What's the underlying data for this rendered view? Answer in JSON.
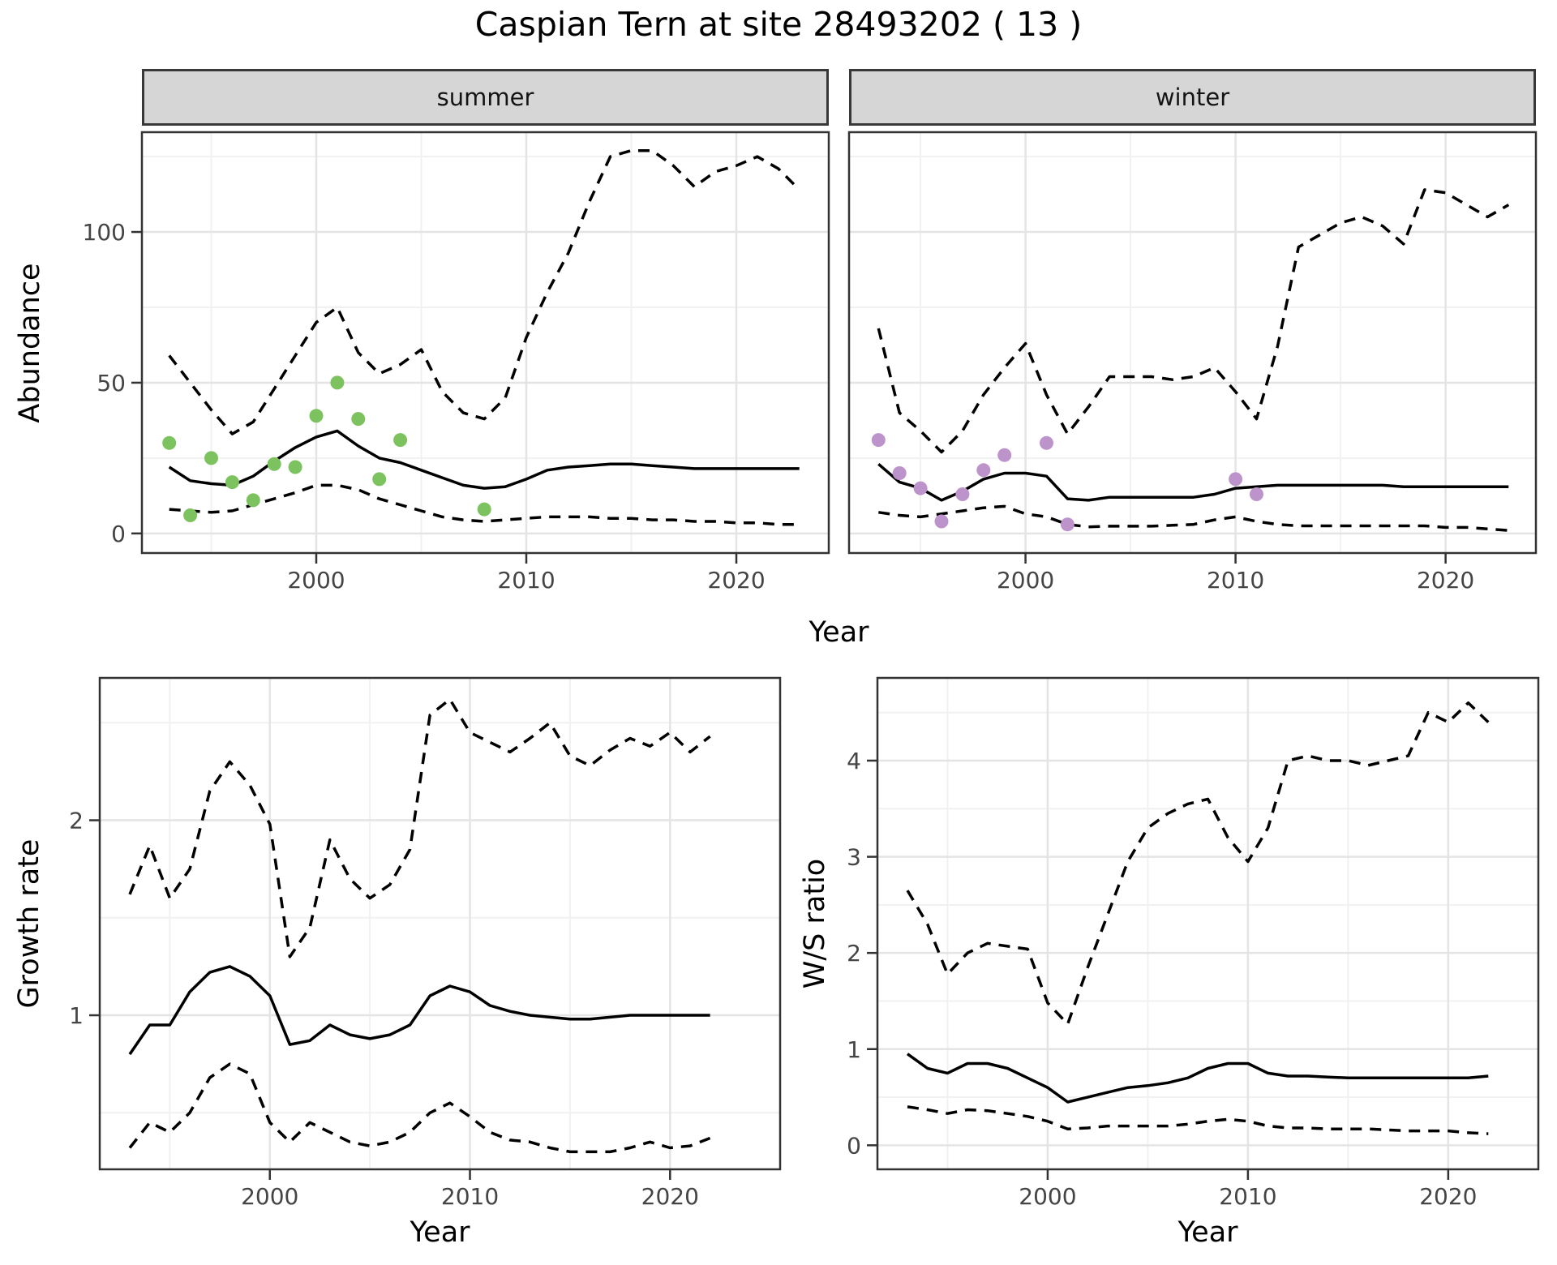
{
  "title": "Caspian Tern at site 28493202 ( 13 )",
  "facets": {
    "summer": "summer",
    "winter": "winter"
  },
  "axes": {
    "abundance_label": "Abundance",
    "year_label": "Year",
    "growth_label": "Growth rate",
    "ws_label": "W/S ratio"
  },
  "colors": {
    "summer_points": "#7cc35f",
    "winter_points": "#bd93cb",
    "line": "#000000",
    "strip_bg": "#d6d6d6",
    "grid_major": "#e4e4e4",
    "grid_minor": "#f1f1f1",
    "tick": "#333333",
    "tick_label": "#454545",
    "panel_border": "#333333"
  },
  "chart_data": [
    {
      "id": "abundance-summer",
      "type": "line",
      "facet": "summer",
      "xlabel": "Year",
      "ylabel": "Abundance",
      "x_range": [
        1991.7,
        2024.4
      ],
      "y_range": [
        -6.5,
        133.1
      ],
      "x_ticks": [
        2000,
        2010,
        2020
      ],
      "x_minor_ticks": [
        1995,
        2005,
        2015
      ],
      "y_ticks": [
        0,
        50,
        100
      ],
      "y_minor_ticks": [
        25,
        75,
        125
      ],
      "series": [
        {
          "name": "upper-95ci",
          "type": "line",
          "style": "dashed",
          "x_start": 1993,
          "y": [
            59,
            50,
            41,
            33,
            37,
            48,
            59,
            70,
            75,
            60,
            53,
            56,
            61,
            47,
            40,
            38,
            45,
            65,
            80,
            93,
            110,
            125,
            127,
            127,
            122,
            115,
            120,
            122,
            125,
            121,
            114
          ]
        },
        {
          "name": "median",
          "type": "line",
          "style": "solid",
          "x_start": 1993,
          "y": [
            22,
            17.5,
            16.5,
            16,
            19,
            24,
            28.5,
            32,
            34,
            29,
            25,
            23.5,
            21,
            18.5,
            16,
            15,
            15.5,
            18,
            21,
            22,
            22.5,
            23,
            23,
            22.5,
            22,
            21.5,
            21.5,
            21.5,
            21.5,
            21.5,
            21.5
          ]
        },
        {
          "name": "lower-95ci",
          "type": "line",
          "style": "dashed",
          "x_start": 1993,
          "y": [
            8,
            7.5,
            7,
            7.5,
            9.5,
            11.5,
            13.5,
            16,
            16,
            14.5,
            11.5,
            9.5,
            7.5,
            5.5,
            4.5,
            4,
            4.5,
            5,
            5.5,
            5.5,
            5.5,
            5,
            5,
            4.5,
            4.5,
            4,
            4,
            3.5,
            3.5,
            3,
            3
          ]
        },
        {
          "name": "observations",
          "type": "scatter",
          "color": "#7cc35f",
          "x": [
            1993,
            1994,
            1995,
            1996,
            1997,
            1998,
            1999,
            2000,
            2001,
            2002,
            2003,
            2004,
            2008
          ],
          "y": [
            30,
            6,
            25,
            17,
            11,
            23,
            22,
            39,
            50,
            38,
            18,
            31,
            8
          ]
        }
      ]
    },
    {
      "id": "abundance-winter",
      "type": "line",
      "facet": "winter",
      "xlabel": "Year",
      "ylabel": "Abundance",
      "x_range": [
        1991.6,
        2024.3
      ],
      "y_range": [
        -6.5,
        133.1
      ],
      "x_ticks": [
        2000,
        2010,
        2020
      ],
      "x_minor_ticks": [
        1995,
        2005,
        2015
      ],
      "y_ticks": [
        0,
        50,
        100
      ],
      "y_minor_ticks": [
        25,
        75,
        125
      ],
      "series": [
        {
          "name": "upper-95ci",
          "type": "line",
          "style": "dashed",
          "x_start": 1993,
          "y": [
            68,
            40,
            34,
            27,
            34,
            46,
            55,
            63,
            46,
            33,
            42,
            52,
            52,
            52,
            51,
            52,
            55,
            47,
            38,
            62,
            95,
            99,
            103,
            105,
            102,
            96,
            114,
            113,
            109,
            105,
            109
          ]
        },
        {
          "name": "median",
          "type": "line",
          "style": "solid",
          "x_start": 1993,
          "y": [
            23,
            17,
            15,
            11,
            14,
            18,
            20,
            20,
            19,
            11.5,
            11,
            12,
            12,
            12,
            12,
            12,
            13,
            15,
            15.5,
            16,
            16,
            16,
            16,
            16,
            16,
            15.5,
            15.5,
            15.5,
            15.5,
            15.5,
            15.5
          ]
        },
        {
          "name": "lower-95ci",
          "type": "line",
          "style": "dashed",
          "x_start": 1993,
          "y": [
            7,
            6,
            5.5,
            6.5,
            7.5,
            8.5,
            9,
            6.5,
            5.5,
            3,
            2.2,
            2.4,
            2.4,
            2.4,
            2.7,
            3,
            4.5,
            5.5,
            4,
            3,
            2.5,
            2.5,
            2.5,
            2.5,
            2.5,
            2.5,
            2.5,
            2,
            2,
            1.5,
            1
          ]
        },
        {
          "name": "observations",
          "type": "scatter",
          "color": "#bd93cb",
          "x": [
            1993,
            1994,
            1995,
            1996,
            1997,
            1998,
            1999,
            2001,
            2002,
            2010,
            2011
          ],
          "y": [
            31,
            20,
            15,
            4,
            13,
            21,
            26,
            30,
            3,
            18,
            13
          ]
        }
      ]
    },
    {
      "id": "growth-rate",
      "type": "line",
      "xlabel": "Year",
      "ylabel": "Growth rate",
      "x_range": [
        1991.5,
        2025.5
      ],
      "y_range": [
        0.21,
        2.73
      ],
      "x_ticks": [
        2000,
        2010,
        2020
      ],
      "x_minor_ticks": [
        1995,
        2005,
        2015
      ],
      "y_ticks": [
        1,
        2
      ],
      "y_minor_ticks": [
        0.5,
        1.5,
        2.5
      ],
      "series": [
        {
          "name": "upper-95ci",
          "type": "line",
          "style": "dashed",
          "x_start": 1993,
          "y": [
            1.62,
            1.87,
            1.6,
            1.75,
            2.15,
            2.3,
            2.18,
            1.98,
            1.3,
            1.45,
            1.9,
            1.7,
            1.6,
            1.67,
            1.85,
            2.54,
            2.62,
            2.45,
            2.4,
            2.35,
            2.42,
            2.5,
            2.33,
            2.28,
            2.36,
            2.42,
            2.38,
            2.45,
            2.35,
            2.43
          ]
        },
        {
          "name": "median",
          "type": "line",
          "style": "solid",
          "x_start": 1993,
          "y": [
            0.8,
            0.95,
            0.95,
            1.12,
            1.22,
            1.25,
            1.2,
            1.1,
            0.85,
            0.87,
            0.95,
            0.9,
            0.88,
            0.9,
            0.95,
            1.1,
            1.15,
            1.12,
            1.05,
            1.02,
            1.0,
            0.99,
            0.98,
            0.98,
            0.99,
            1.0,
            1.0,
            1.0,
            1.0,
            1.0
          ]
        },
        {
          "name": "lower-95ci",
          "type": "line",
          "style": "dashed",
          "x_start": 1993,
          "y": [
            0.32,
            0.45,
            0.4,
            0.5,
            0.68,
            0.75,
            0.7,
            0.45,
            0.35,
            0.45,
            0.4,
            0.35,
            0.33,
            0.35,
            0.4,
            0.5,
            0.55,
            0.48,
            0.4,
            0.36,
            0.35,
            0.32,
            0.3,
            0.3,
            0.3,
            0.32,
            0.35,
            0.32,
            0.33,
            0.37
          ]
        }
      ]
    },
    {
      "id": "ws-ratio",
      "type": "line",
      "xlabel": "Year",
      "ylabel": "W/S ratio",
      "x_range": [
        1991.5,
        2024.5
      ],
      "y_range": [
        -0.25,
        4.86
      ],
      "x_ticks": [
        2000,
        2010,
        2020
      ],
      "x_minor_ticks": [
        1995,
        2005,
        2015
      ],
      "y_ticks": [
        0,
        1,
        2,
        3,
        4
      ],
      "y_minor_ticks": [
        0.5,
        1.5,
        2.5,
        3.5,
        4.5
      ],
      "series": [
        {
          "name": "upper-95ci",
          "type": "line",
          "style": "dashed",
          "x_start": 1993,
          "y": [
            2.65,
            2.3,
            1.78,
            2.0,
            2.1,
            2.07,
            2.04,
            1.48,
            1.26,
            1.85,
            2.4,
            2.95,
            3.3,
            3.45,
            3.55,
            3.6,
            3.2,
            2.95,
            3.3,
            4.0,
            4.05,
            4.0,
            4.0,
            3.95,
            4.0,
            4.05,
            4.5,
            4.4,
            4.6,
            4.4
          ]
        },
        {
          "name": "median",
          "type": "line",
          "style": "solid",
          "x_start": 1993,
          "y": [
            0.95,
            0.8,
            0.75,
            0.85,
            0.85,
            0.8,
            0.7,
            0.6,
            0.45,
            0.5,
            0.55,
            0.6,
            0.62,
            0.65,
            0.7,
            0.8,
            0.85,
            0.85,
            0.75,
            0.72,
            0.72,
            0.71,
            0.7,
            0.7,
            0.7,
            0.7,
            0.7,
            0.7,
            0.7,
            0.72
          ]
        },
        {
          "name": "lower-95ci",
          "type": "line",
          "style": "dashed",
          "x_start": 1993,
          "y": [
            0.4,
            0.37,
            0.33,
            0.37,
            0.36,
            0.33,
            0.3,
            0.25,
            0.17,
            0.18,
            0.2,
            0.2,
            0.2,
            0.2,
            0.22,
            0.25,
            0.27,
            0.25,
            0.2,
            0.18,
            0.18,
            0.17,
            0.17,
            0.17,
            0.16,
            0.15,
            0.15,
            0.15,
            0.13,
            0.12
          ]
        }
      ]
    }
  ]
}
